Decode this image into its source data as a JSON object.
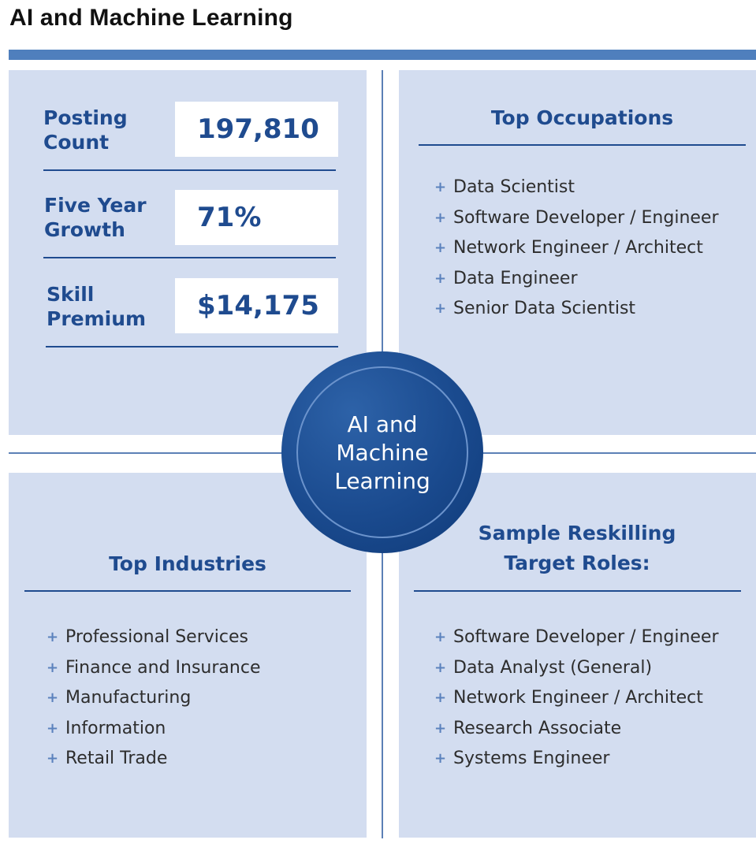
{
  "title": "AI and Machine Learning",
  "stats": [
    {
      "label_line1": "Posting",
      "label_line2": "Count",
      "value": "197,810"
    },
    {
      "label_line1": "Five Year",
      "label_line2": "Growth",
      "value": "71%"
    },
    {
      "label_line1": "Skill",
      "label_line2": "Premium",
      "value": "$14,175"
    }
  ],
  "top_occupations": {
    "title": "Top Occupations",
    "items": [
      "Data Scientist",
      "Software Developer / Engineer",
      "Network Engineer / Architect",
      "Data Engineer",
      "Senior Data Scientist"
    ]
  },
  "center": {
    "line1": "AI and",
    "line2": "Machine",
    "line3": "Learning"
  },
  "top_industries": {
    "title": "Top Industries",
    "items": [
      "Professional Services",
      "Finance and Insurance",
      "Manufacturing",
      "Information",
      "Retail Trade"
    ]
  },
  "reskilling": {
    "title_line1": "Sample Reskilling",
    "title_line2": "Target Roles:",
    "items": [
      "Software Developer / Engineer",
      "Data Analyst (General)",
      "Network Engineer / Architect",
      "Research Associate",
      "Systems Engineer"
    ]
  },
  "bullet_symbol": "+",
  "colors": {
    "accent": "#1f4b8f",
    "panel": "#d3ddf0",
    "title_bar": "#4f7fbd",
    "bullet": "#5b82bd"
  }
}
